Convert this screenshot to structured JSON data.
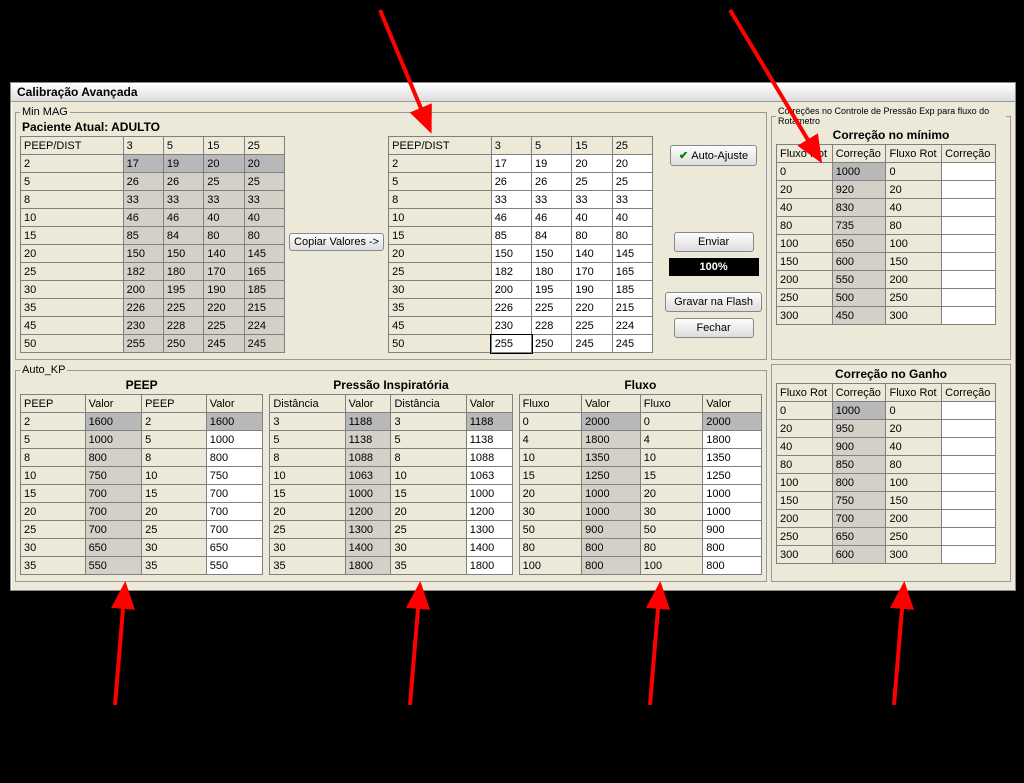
{
  "window_title": "Calibração Avançada",
  "minmag": {
    "legend": "Min MAG",
    "patient_label": "Paciente Atual: ADULTO",
    "headers": [
      "PEEP/DIST",
      "3",
      "5",
      "15",
      "25"
    ],
    "rows": [
      [
        "2",
        "17",
        "19",
        "20",
        "20"
      ],
      [
        "5",
        "26",
        "26",
        "25",
        "25"
      ],
      [
        "8",
        "33",
        "33",
        "33",
        "33"
      ],
      [
        "10",
        "46",
        "46",
        "40",
        "40"
      ],
      [
        "15",
        "85",
        "84",
        "80",
        "80"
      ],
      [
        "20",
        "150",
        "150",
        "140",
        "145"
      ],
      [
        "25",
        "182",
        "180",
        "170",
        "165"
      ],
      [
        "30",
        "200",
        "195",
        "190",
        "185"
      ],
      [
        "35",
        "226",
        "225",
        "220",
        "215"
      ],
      [
        "45",
        "230",
        "228",
        "225",
        "224"
      ],
      [
        "50",
        "255",
        "250",
        "245",
        "245"
      ]
    ],
    "copy_btn": "Copiar Valores ->",
    "auto_btn": "Auto-Ajuste",
    "enviar_btn": "Enviar",
    "progress": "100%",
    "flash_btn": "Gravar na Flash",
    "fechar_btn": "Fechar"
  },
  "corr_min": {
    "legend": "Correções no Controle de Pressão Exp para fluxo do Rotâmetro",
    "title": "Correção no mínimo",
    "headers": [
      "Fluxo Rot",
      "Correção",
      "Fluxo Rot",
      "Correção"
    ],
    "rows": [
      [
        "0",
        "1000",
        "0",
        ""
      ],
      [
        "20",
        "920",
        "20",
        ""
      ],
      [
        "40",
        "830",
        "40",
        ""
      ],
      [
        "80",
        "735",
        "80",
        ""
      ],
      [
        "100",
        "650",
        "100",
        ""
      ],
      [
        "150",
        "600",
        "150",
        ""
      ],
      [
        "200",
        "550",
        "200",
        ""
      ],
      [
        "250",
        "500",
        "250",
        ""
      ],
      [
        "300",
        "450",
        "300",
        ""
      ]
    ]
  },
  "autokp": {
    "legend": "Auto_KP",
    "peep": {
      "title": "PEEP",
      "headers": [
        "PEEP",
        "Valor",
        "PEEP",
        "Valor"
      ],
      "rows": [
        [
          "2",
          "1600",
          "2",
          "1600"
        ],
        [
          "5",
          "1000",
          "5",
          "1000"
        ],
        [
          "8",
          "800",
          "8",
          "800"
        ],
        [
          "10",
          "750",
          "10",
          "750"
        ],
        [
          "15",
          "700",
          "15",
          "700"
        ],
        [
          "20",
          "700",
          "20",
          "700"
        ],
        [
          "25",
          "700",
          "25",
          "700"
        ],
        [
          "30",
          "650",
          "30",
          "650"
        ],
        [
          "35",
          "550",
          "35",
          "550"
        ]
      ]
    },
    "pinsp": {
      "title": "Pressão Inspiratória",
      "headers": [
        "Distância",
        "Valor",
        "Distância",
        "Valor"
      ],
      "rows": [
        [
          "3",
          "1188",
          "3",
          "1188"
        ],
        [
          "5",
          "1138",
          "5",
          "1138"
        ],
        [
          "8",
          "1088",
          "8",
          "1088"
        ],
        [
          "10",
          "1063",
          "10",
          "1063"
        ],
        [
          "15",
          "1000",
          "15",
          "1000"
        ],
        [
          "20",
          "1200",
          "20",
          "1200"
        ],
        [
          "25",
          "1300",
          "25",
          "1300"
        ],
        [
          "30",
          "1400",
          "30",
          "1400"
        ],
        [
          "35",
          "1800",
          "35",
          "1800"
        ]
      ]
    },
    "fluxo": {
      "title": "Fluxo",
      "headers": [
        "Fluxo",
        "Valor",
        "Fluxo",
        "Valor"
      ],
      "rows": [
        [
          "0",
          "2000",
          "0",
          "2000"
        ],
        [
          "4",
          "1800",
          "4",
          "1800"
        ],
        [
          "10",
          "1350",
          "10",
          "1350"
        ],
        [
          "15",
          "1250",
          "15",
          "1250"
        ],
        [
          "20",
          "1000",
          "20",
          "1000"
        ],
        [
          "30",
          "1000",
          "30",
          "1000"
        ],
        [
          "50",
          "900",
          "50",
          "900"
        ],
        [
          "80",
          "800",
          "80",
          "800"
        ],
        [
          "100",
          "800",
          "100",
          "800"
        ]
      ]
    }
  },
  "corr_ganho": {
    "title": "Correção no Ganho",
    "headers": [
      "Fluxo Rot",
      "Correção",
      "Fluxo Rot",
      "Correção"
    ],
    "rows": [
      [
        "0",
        "1000",
        "0",
        ""
      ],
      [
        "20",
        "950",
        "20",
        ""
      ],
      [
        "40",
        "900",
        "40",
        ""
      ],
      [
        "80",
        "850",
        "80",
        ""
      ],
      [
        "100",
        "800",
        "100",
        ""
      ],
      [
        "150",
        "750",
        "150",
        ""
      ],
      [
        "200",
        "700",
        "200",
        ""
      ],
      [
        "250",
        "650",
        "250",
        ""
      ],
      [
        "300",
        "600",
        "300",
        ""
      ]
    ]
  },
  "colors": {
    "arrow": "#ff0000",
    "panel_bg": "#ece9d8",
    "shaded": "#d4d0c8",
    "selected": "#b8b8b8"
  }
}
